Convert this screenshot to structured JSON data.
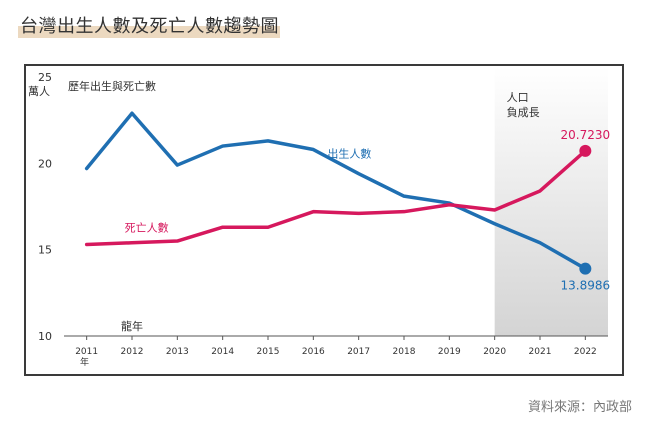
{
  "header": {
    "title": "台灣出生人數及死亡人數趨勢圖"
  },
  "source": "資料來源：內政部",
  "chart_data": {
    "type": "line",
    "title": "歷年出生與死亡數",
    "ylabel": "萬人",
    "xlabel": "年",
    "ylim": [
      10,
      25
    ],
    "yticks": [
      10,
      15,
      20,
      25
    ],
    "x": [
      "2011",
      "2012",
      "2013",
      "2014",
      "2015",
      "2016",
      "2017",
      "2018",
      "2019",
      "2020",
      "2021",
      "2022"
    ],
    "grid": false,
    "annotation": {
      "text_line1": "人口",
      "text_line2": "負成長",
      "from": "2020",
      "to": "2022"
    },
    "dragon_year_label": "龍年",
    "series": [
      {
        "name": "出生人數",
        "color": "#1f6fb2",
        "values": [
          19.7,
          22.9,
          19.9,
          21.0,
          21.3,
          20.8,
          19.4,
          18.1,
          17.7,
          16.5,
          15.4,
          13.8986
        ],
        "end_label": "13.8986"
      },
      {
        "name": "死亡人數",
        "color": "#d6185d",
        "values": [
          15.3,
          15.4,
          15.5,
          16.3,
          16.3,
          17.2,
          17.1,
          17.2,
          17.6,
          17.3,
          18.4,
          20.723
        ],
        "end_label": "20.7230"
      }
    ]
  }
}
